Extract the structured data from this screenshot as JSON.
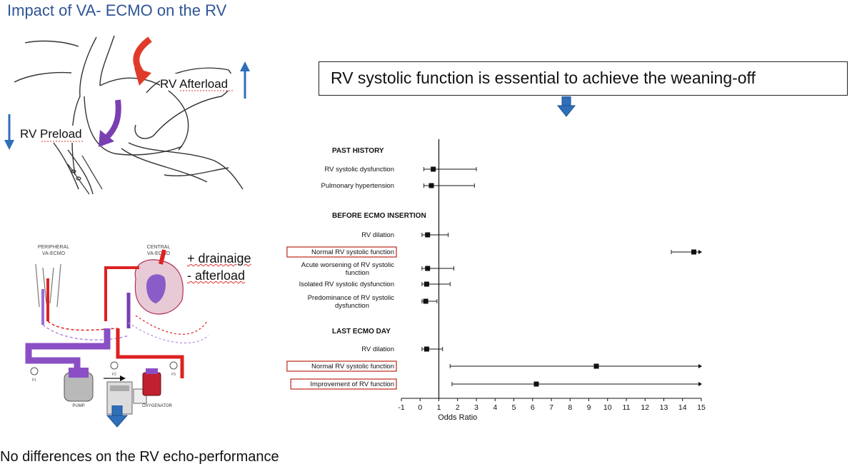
{
  "slide": {
    "title": "Impact of VA- ECMO on the RV",
    "footer": "No differences on the RV echo-performance",
    "callout": "RV systolic function is essential to achieve the weaning-off"
  },
  "heart_diagram": {
    "afterload_label": "RV Afterload",
    "preload_label": "RV Preload",
    "afterload_arrow_color": "#2f6fba",
    "preload_arrow_color": "#2f6fba",
    "red_arrow_color": "#e03a2a",
    "purple_arrow_color": "#7a3fb0"
  },
  "ecmo_diagram": {
    "peripheral_label": [
      "PERIPHERAL",
      "VA-ECMO"
    ],
    "central_label": [
      "CENTRAL",
      "VA-ECMO"
    ],
    "note_drainage": "+ drainaige",
    "note_afterload": "- afterload",
    "pump_label": "PUMP",
    "oxygenator_label": "OXYGENATOR",
    "gauge_labels": [
      "P1",
      "P2",
      "P3"
    ]
  },
  "forest_plot": {
    "xlabel": "Odds Ratio",
    "x_ticks": [
      "-1",
      "0",
      "1",
      "2",
      "3",
      "4",
      "5",
      "6",
      "7",
      "8",
      "9",
      "10",
      "11",
      "12",
      "13",
      "14",
      "15"
    ],
    "sections": [
      {
        "title": "PAST HISTORY",
        "rows": [
          {
            "label": "RV systolic dysfunction",
            "or": 0.7,
            "lo": 0.2,
            "hi": 3.0,
            "highlight": false
          },
          {
            "label": "Pulmonary hypertension",
            "or": 0.6,
            "lo": 0.2,
            "hi": 2.9,
            "highlight": false
          }
        ]
      },
      {
        "title": "BEFORE ECMO INSERTION",
        "rows": [
          {
            "label": "RV dilation",
            "or": 0.4,
            "lo": 0.1,
            "hi": 1.5,
            "highlight": false
          },
          {
            "label": "Normal RV systolic function",
            "or": 14.6,
            "lo": 13.4,
            "hi": 15.0,
            "highlight": true
          },
          {
            "label": "Acute worsening of RV systolic function",
            "or": 0.4,
            "lo": 0.1,
            "hi": 1.8,
            "highlight": false
          },
          {
            "label": "Isolated RV systolic dysfunction",
            "or": 0.35,
            "lo": 0.1,
            "hi": 1.6,
            "highlight": false
          },
          {
            "label": "Predominance of RV systolic dysfunction",
            "or": 0.3,
            "lo": 0.1,
            "hi": 0.9,
            "highlight": false
          }
        ]
      },
      {
        "title": "LAST ECMO DAY",
        "rows": [
          {
            "label": "RV dilation",
            "or": 0.35,
            "lo": 0.1,
            "hi": 1.2,
            "highlight": false
          },
          {
            "label": "Normal RV systolic function",
            "or": 9.4,
            "lo": 1.6,
            "hi": 15.0,
            "highlight": true
          },
          {
            "label": "Improvement of RV function",
            "or": 6.2,
            "lo": 1.7,
            "hi": 15.0,
            "highlight": true
          }
        ]
      }
    ],
    "highlight_color": "#c0392b"
  }
}
